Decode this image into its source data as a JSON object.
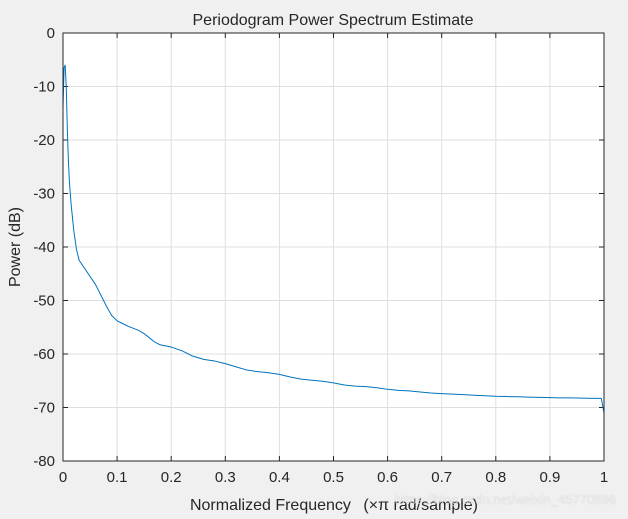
{
  "colors": {
    "figure_bg": "#f0f0f0",
    "axes_bg": "#ffffff",
    "axes_edge": "#262626",
    "grid": "#dfdfdf",
    "line": "#0072bd"
  },
  "watermark": "https://blog.csdn.net/weixin_45770896",
  "chart_data": {
    "type": "line",
    "title": "Periodogram Power Spectrum Estimate",
    "xlabel_main": "Normalized Frequency",
    "xlabel_unit": "(×π rad/sample)",
    "ylabel": "Power (dB)",
    "xlim": [
      0,
      1
    ],
    "ylim": [
      -80,
      0
    ],
    "xticks": [
      0,
      0.1,
      0.2,
      0.3,
      0.4,
      0.5,
      0.6,
      0.7,
      0.8,
      0.9,
      1
    ],
    "xtick_labels": [
      "0",
      "0.1",
      "0.2",
      "0.3",
      "0.4",
      "0.5",
      "0.6",
      "0.7",
      "0.8",
      "0.9",
      "1"
    ],
    "yticks": [
      0,
      -10,
      -20,
      -30,
      -40,
      -50,
      -60,
      -70,
      -80
    ],
    "ytick_labels": [
      "0",
      "-10",
      "-20",
      "-30",
      "-40",
      "-50",
      "-60",
      "-70",
      "-80"
    ],
    "grid": true,
    "series": [
      {
        "x": [
          0,
          0.002,
          0.004,
          0.006,
          0.008,
          0.01,
          0.012,
          0.015,
          0.02,
          0.025,
          0.03,
          0.04,
          0.05,
          0.06,
          0.07,
          0.08,
          0.09,
          0.1,
          0.11,
          0.12,
          0.13,
          0.14,
          0.15,
          0.16,
          0.17,
          0.18,
          0.2,
          0.22,
          0.24,
          0.26,
          0.28,
          0.3,
          0.32,
          0.34,
          0.36,
          0.38,
          0.4,
          0.42,
          0.44,
          0.46,
          0.48,
          0.5,
          0.52,
          0.54,
          0.56,
          0.58,
          0.6,
          0.62,
          0.64,
          0.66,
          0.68,
          0.7,
          0.72,
          0.74,
          0.76,
          0.78,
          0.8,
          0.82,
          0.84,
          0.86,
          0.88,
          0.9,
          0.92,
          0.94,
          0.96,
          0.98,
          0.995,
          1.0
        ],
        "y": [
          -14,
          -6.5,
          -6,
          -10,
          -18,
          -24,
          -28,
          -32,
          -37,
          -40.5,
          -42.5,
          -44,
          -45.5,
          -47,
          -49,
          -51,
          -52.8,
          -53.8,
          -54.3,
          -54.8,
          -55.2,
          -55.6,
          -56.2,
          -57,
          -57.8,
          -58.3,
          -58.7,
          -59.4,
          -60.4,
          -61,
          -61.3,
          -61.8,
          -62.4,
          -63,
          -63.3,
          -63.5,
          -63.8,
          -64.3,
          -64.7,
          -64.9,
          -65.1,
          -65.4,
          -65.8,
          -66,
          -66.1,
          -66.3,
          -66.6,
          -66.8,
          -66.9,
          -67.1,
          -67.3,
          -67.4,
          -67.5,
          -67.6,
          -67.7,
          -67.8,
          -67.9,
          -67.95,
          -68.0,
          -68.05,
          -68.1,
          -68.15,
          -68.2,
          -68.2,
          -68.25,
          -68.3,
          -68.3,
          -71
        ]
      }
    ]
  }
}
